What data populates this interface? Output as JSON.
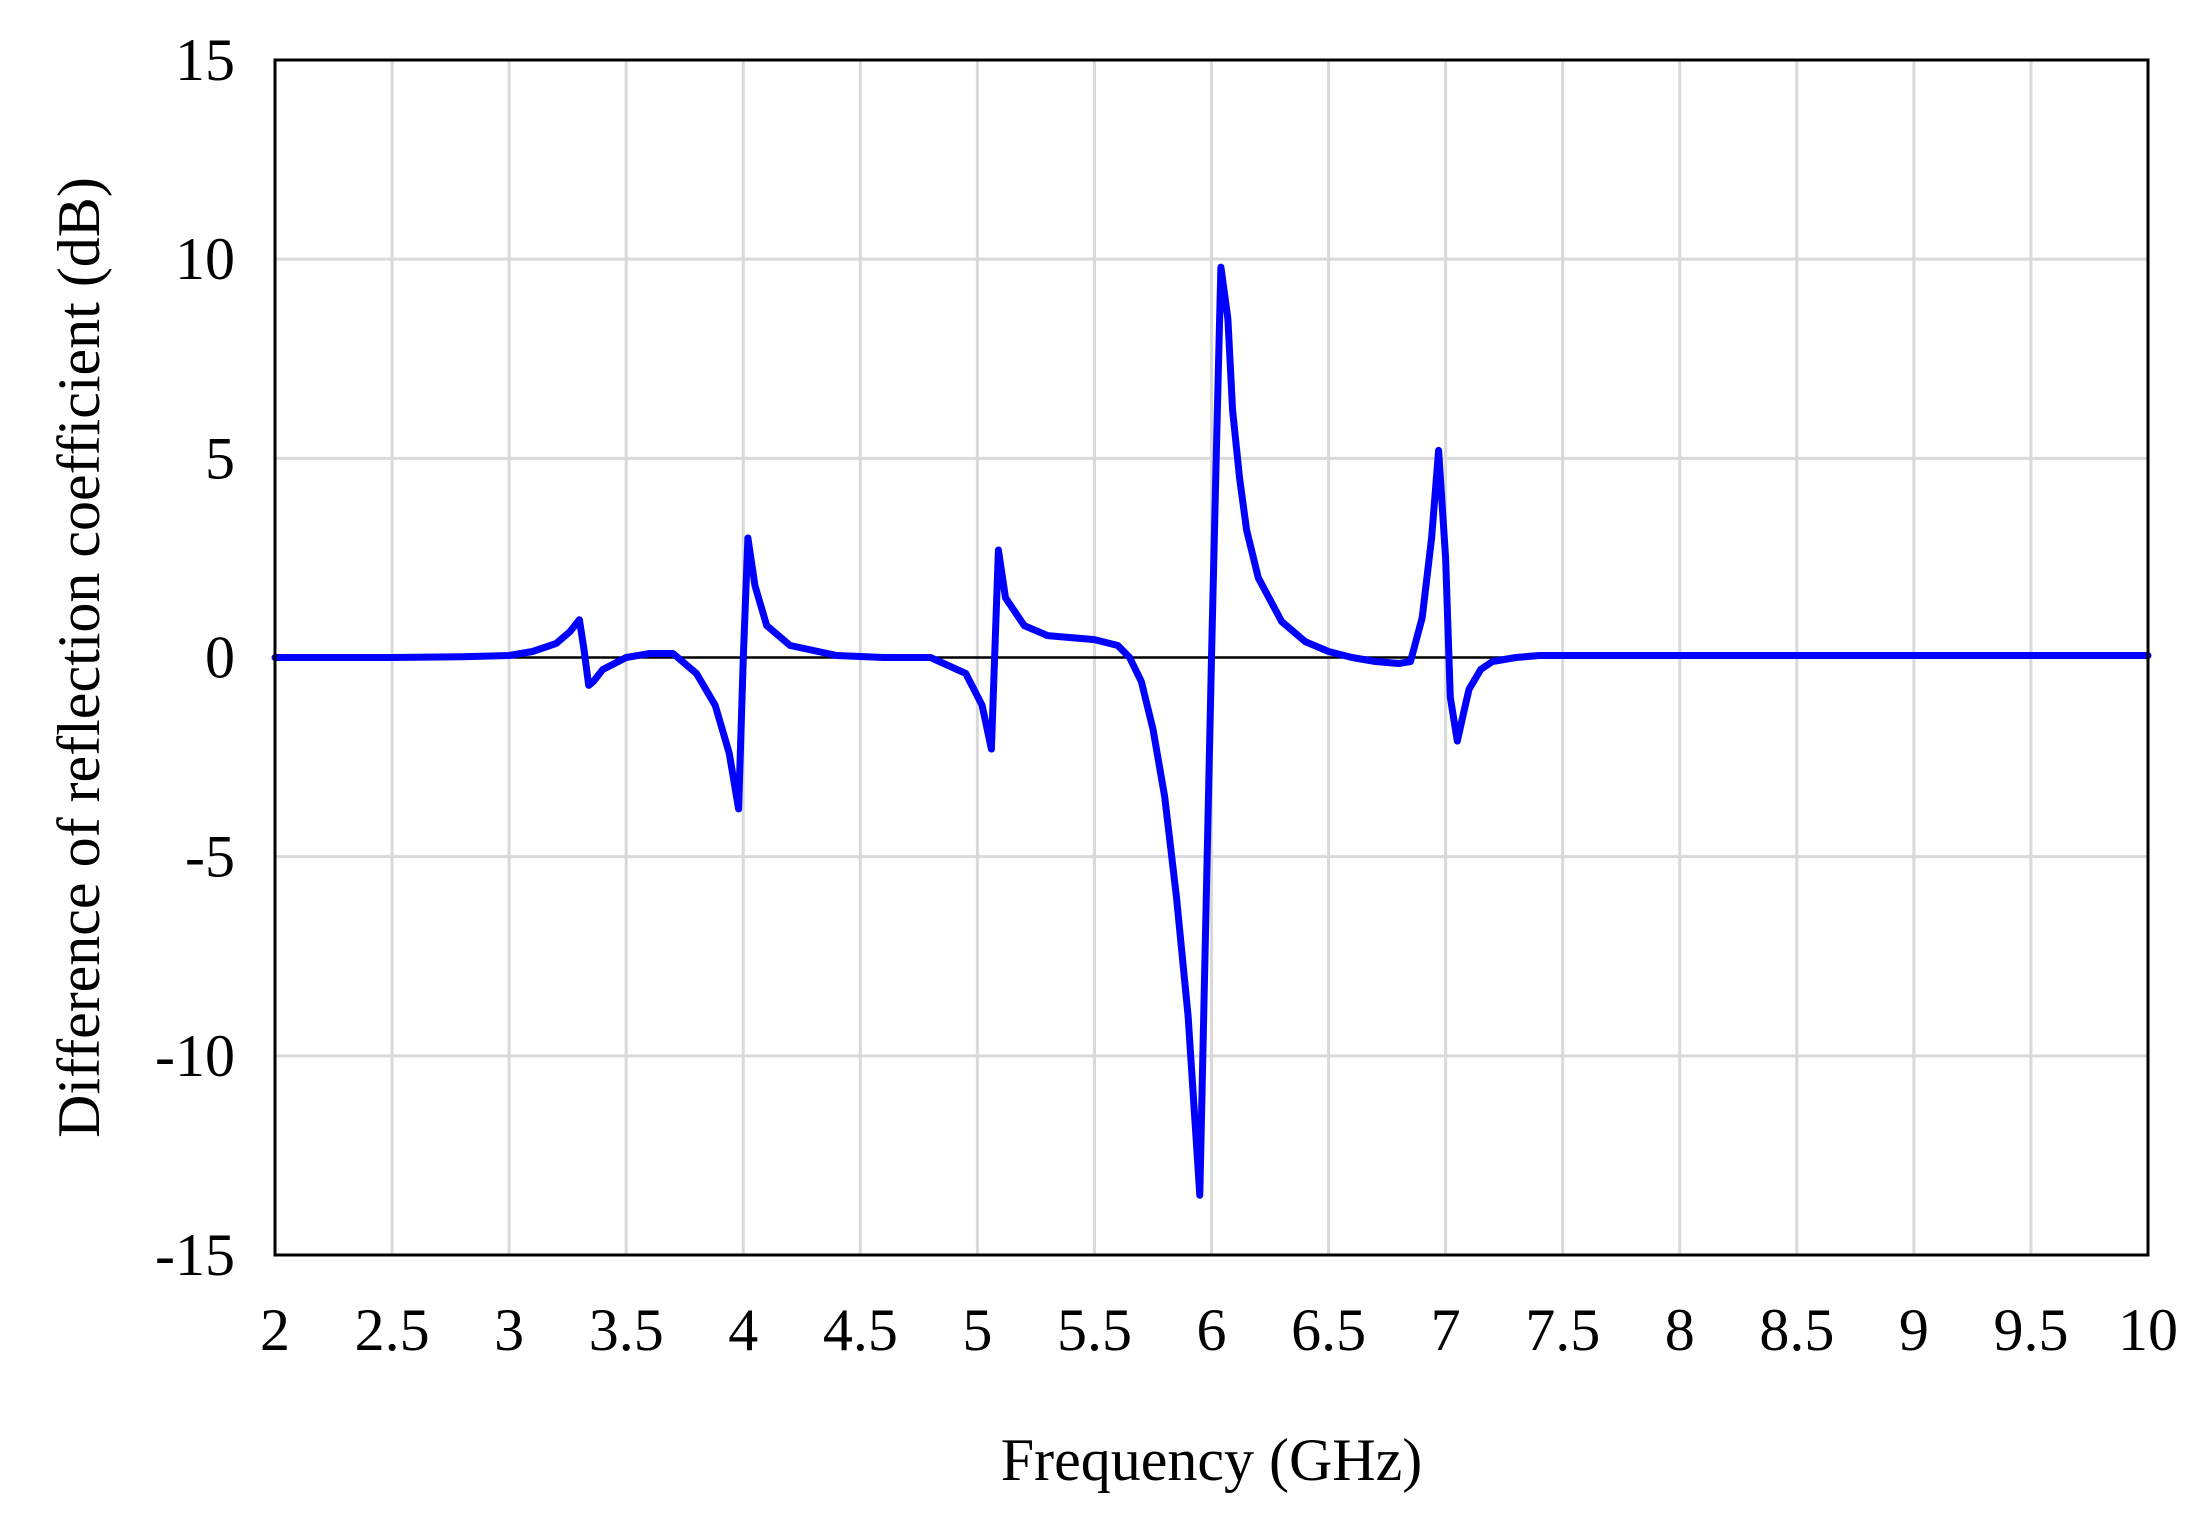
{
  "chart_data": {
    "type": "line",
    "title": "",
    "xlabel": "Frequency  (GHz)",
    "ylabel": "Difference  of reflection  coefficient   (dB)",
    "xlim": [
      2,
      10
    ],
    "ylim": [
      -15,
      15
    ],
    "xticks": [
      "2",
      "2.5",
      "3",
      "3.5",
      "4",
      "4.5",
      "5",
      "5.5",
      "6",
      "6.5",
      "7",
      "7.5",
      "8",
      "8.5",
      "9",
      "9.5",
      "10"
    ],
    "yticks": [
      "-15",
      "-10",
      "-5",
      "0",
      "5",
      "10",
      "15"
    ],
    "grid": true,
    "zero_line": true,
    "line_color": "#0000FF",
    "grid_color": "#D9D9D9",
    "series": [
      {
        "x": [
          2.0,
          2.5,
          2.8,
          3.0,
          3.1,
          3.2,
          3.26,
          3.3,
          3.32,
          3.34,
          3.36,
          3.4,
          3.5,
          3.6,
          3.7,
          3.8,
          3.88,
          3.94,
          3.98,
          4.0,
          4.02,
          4.05,
          4.1,
          4.2,
          4.4,
          4.6,
          4.8,
          4.95,
          5.02,
          5.06,
          5.09,
          5.12,
          5.2,
          5.3,
          5.5,
          5.6,
          5.65,
          5.7,
          5.75,
          5.8,
          5.85,
          5.9,
          5.95,
          6.0,
          6.02,
          6.04,
          6.07,
          6.09,
          6.12,
          6.15,
          6.2,
          6.3,
          6.4,
          6.5,
          6.6,
          6.7,
          6.8,
          6.85,
          6.9,
          6.94,
          6.97,
          7.0,
          7.02,
          7.05,
          7.08,
          7.1,
          7.15,
          7.2,
          7.3,
          7.4,
          7.5,
          8.0,
          8.5,
          9.0,
          9.5,
          10.0
        ],
        "y": [
          0.0,
          0.0,
          0.02,
          0.05,
          0.15,
          0.35,
          0.65,
          0.95,
          0.2,
          -0.7,
          -0.6,
          -0.3,
          0.0,
          0.1,
          0.1,
          -0.4,
          -1.2,
          -2.4,
          -3.8,
          0.0,
          3.0,
          1.8,
          0.8,
          0.3,
          0.05,
          0.0,
          0.0,
          -0.4,
          -1.2,
          -2.3,
          2.7,
          1.5,
          0.8,
          0.55,
          0.45,
          0.3,
          0.0,
          -0.6,
          -1.8,
          -3.5,
          -6.0,
          -9.0,
          -13.5,
          0.0,
          5.0,
          9.8,
          8.5,
          6.2,
          4.5,
          3.2,
          2.0,
          0.9,
          0.4,
          0.15,
          0.0,
          -0.1,
          -0.15,
          -0.1,
          1.0,
          3.0,
          5.2,
          2.5,
          -1.0,
          -2.1,
          -1.3,
          -0.8,
          -0.3,
          -0.1,
          0.0,
          0.05,
          0.05,
          0.05,
          0.05,
          0.05,
          0.05,
          0.05
        ]
      }
    ]
  }
}
